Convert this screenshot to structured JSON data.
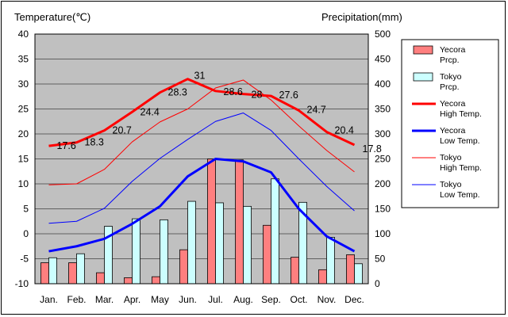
{
  "chart_data": {
    "type": "bar",
    "ylabel_left": "Temperature(℃)",
    "ylabel_right": "Precipitation(mm)",
    "categories": [
      "Jan.",
      "Feb.",
      "Mar.",
      "Apr.",
      "May",
      "Jun.",
      "Jul.",
      "Aug.",
      "Sep.",
      "Oct.",
      "Nov.",
      "Dec."
    ],
    "y_left": {
      "min": -10,
      "max": 40,
      "step": 5
    },
    "y_right": {
      "min": 0,
      "max": 500,
      "step": 50
    },
    "grid": true,
    "legend_position": "right",
    "bar_series": [
      {
        "name": "Yecora\nPrcp.",
        "axis": "right",
        "color": "#ff7f7f",
        "values": [
          42,
          42,
          22,
          12,
          14,
          68,
          250,
          248,
          117,
          53,
          28,
          58
        ]
      },
      {
        "name": "Tokyo\nPrcp.",
        "axis": "right",
        "color": "#ccffff",
        "values": [
          52,
          60,
          115,
          130,
          128,
          165,
          162,
          155,
          210,
          163,
          93,
          40
        ]
      }
    ],
    "line_series": [
      {
        "name": "Yecora\nHigh Temp.",
        "axis": "left",
        "color": "#ff0000",
        "width": 3,
        "values": [
          17.6,
          18.3,
          20.7,
          24.4,
          28.3,
          31,
          28.6,
          28,
          27.6,
          24.7,
          20.4,
          17.8
        ],
        "labels": [
          "17.6",
          "18.3",
          "20.7",
          "24.4",
          "28.3",
          "31",
          "28.6",
          "28",
          "27.6",
          "24.7",
          "20.4",
          "17.8"
        ]
      },
      {
        "name": "Yecora\nLow Temp.",
        "axis": "left",
        "color": "#0000ff",
        "width": 3,
        "values": [
          -3.5,
          -2.5,
          -1,
          2,
          5.5,
          11.5,
          15,
          14.5,
          12.3,
          5,
          -0.5,
          -3.5
        ]
      },
      {
        "name": "Tokyo\nHigh Temp.",
        "axis": "left",
        "color": "#ff0000",
        "width": 1,
        "values": [
          9.8,
          10,
          12.9,
          18.4,
          22.4,
          25,
          29.2,
          30.8,
          26.8,
          21.6,
          16.7,
          12.4
        ]
      },
      {
        "name": "Tokyo\nLow Temp.",
        "axis": "left",
        "color": "#0000ff",
        "width": 1,
        "values": [
          2.1,
          2.5,
          5.1,
          10.5,
          15.1,
          18.9,
          22.5,
          24.2,
          20.7,
          15,
          9.5,
          4.6
        ]
      }
    ]
  }
}
